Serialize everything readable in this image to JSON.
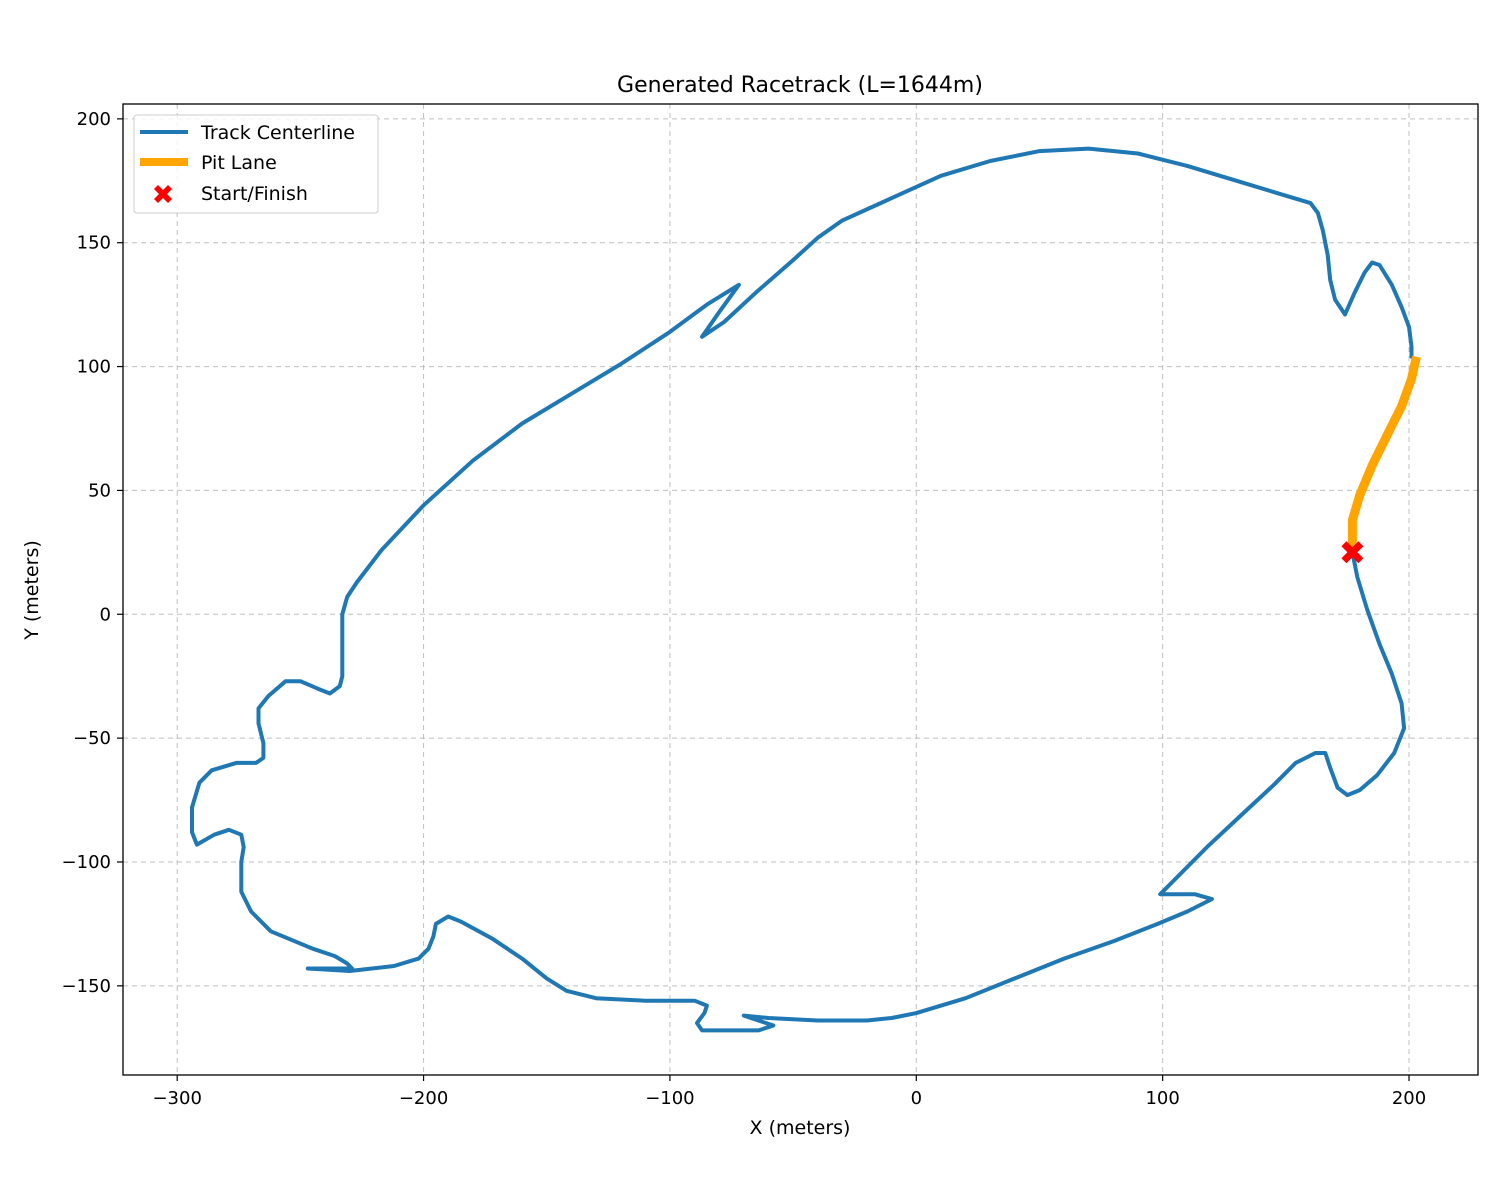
{
  "chart_data": {
    "type": "line",
    "title": "Generated Racetrack (L=1644m)",
    "xlabel": "X (meters)",
    "ylabel": "Y (meters)",
    "xlim": [
      -322,
      228
    ],
    "ylim": [
      -186,
      206
    ],
    "xticks": [
      -300,
      -200,
      -100,
      0,
      100,
      200
    ],
    "yticks": [
      -150,
      -100,
      -50,
      0,
      50,
      100,
      150,
      200
    ],
    "xtick_labels": [
      "−300",
      "−200",
      "−100",
      "0",
      "100",
      "200"
    ],
    "ytick_labels": [
      "−150",
      "−100",
      "−50",
      "0",
      "50",
      "100",
      "150",
      "200"
    ],
    "grid": true,
    "legend_position": "top-left",
    "colors": {
      "track": "#1f77b4",
      "pit": "#ffa500",
      "start": "#ff0000"
    },
    "series": [
      {
        "name": "Track Centerline",
        "style": "line",
        "points": [
          [
            177,
            25
          ],
          [
            179,
            15
          ],
          [
            183,
            2
          ],
          [
            188,
            -12
          ],
          [
            193,
            -24
          ],
          [
            197,
            -36
          ],
          [
            198,
            -46
          ],
          [
            194,
            -56
          ],
          [
            187,
            -65
          ],
          [
            180,
            -71
          ],
          [
            175,
            -73
          ],
          [
            171,
            -70
          ],
          [
            168,
            -62
          ],
          [
            166,
            -56
          ],
          [
            162,
            -56
          ],
          [
            154,
            -60
          ],
          [
            145,
            -69
          ],
          [
            132,
            -81
          ],
          [
            118,
            -94
          ],
          [
            108,
            -104
          ],
          [
            99,
            -113
          ],
          [
            105,
            -113
          ],
          [
            113,
            -113
          ],
          [
            120,
            -115
          ],
          [
            110,
            -120
          ],
          [
            98,
            -125
          ],
          [
            80,
            -132
          ],
          [
            60,
            -139
          ],
          [
            40,
            -147
          ],
          [
            20,
            -155
          ],
          [
            0,
            -161
          ],
          [
            -10,
            -163
          ],
          [
            -20,
            -164
          ],
          [
            -40,
            -164
          ],
          [
            -60,
            -163
          ],
          [
            -70,
            -162
          ],
          [
            -58,
            -166
          ],
          [
            -64,
            -168
          ],
          [
            -80,
            -168
          ],
          [
            -87,
            -168
          ],
          [
            -89,
            -165
          ],
          [
            -86,
            -161
          ],
          [
            -85,
            -158
          ],
          [
            -90,
            -156
          ],
          [
            -110,
            -156
          ],
          [
            -130,
            -155
          ],
          [
            -142,
            -152
          ],
          [
            -150,
            -147
          ],
          [
            -160,
            -139
          ],
          [
            -172,
            -131
          ],
          [
            -185,
            -124
          ],
          [
            -190,
            -122
          ],
          [
            -195,
            -125
          ],
          [
            -196,
            -130
          ],
          [
            -198,
            -135
          ],
          [
            -202,
            -139
          ],
          [
            -212,
            -142
          ],
          [
            -230,
            -144
          ],
          [
            -247,
            -143
          ],
          [
            -238,
            -143
          ],
          [
            -229,
            -143
          ],
          [
            -231,
            -141
          ],
          [
            -236,
            -138
          ],
          [
            -245,
            -135
          ],
          [
            -262,
            -128
          ],
          [
            -270,
            -120
          ],
          [
            -274,
            -112
          ],
          [
            -274,
            -100
          ],
          [
            -273,
            -94
          ],
          [
            -274,
            -89
          ],
          [
            -279,
            -87
          ],
          [
            -285,
            -89
          ],
          [
            -292,
            -93
          ],
          [
            -294,
            -88
          ],
          [
            -294,
            -78
          ],
          [
            -291,
            -68
          ],
          [
            -286,
            -63
          ],
          [
            -276,
            -60
          ],
          [
            -268,
            -60
          ],
          [
            -265,
            -58
          ],
          [
            -265,
            -52
          ],
          [
            -267,
            -44
          ],
          [
            -267,
            -38
          ],
          [
            -263,
            -33
          ],
          [
            -256,
            -27
          ],
          [
            -250,
            -27
          ],
          [
            -243,
            -30
          ],
          [
            -238,
            -32
          ],
          [
            -234,
            -29
          ],
          [
            -233,
            -25
          ],
          [
            -233,
            -15
          ],
          [
            -233,
            0
          ],
          [
            -231,
            7
          ],
          [
            -227,
            13
          ],
          [
            -217,
            26
          ],
          [
            -200,
            44
          ],
          [
            -180,
            62
          ],
          [
            -160,
            77
          ],
          [
            -140,
            89
          ],
          [
            -120,
            101
          ],
          [
            -100,
            114
          ],
          [
            -85,
            125
          ],
          [
            -72,
            133
          ],
          [
            -80,
            122
          ],
          [
            -87,
            112
          ],
          [
            -78,
            118
          ],
          [
            -65,
            130
          ],
          [
            -50,
            143
          ],
          [
            -40,
            152
          ],
          [
            -30,
            159
          ],
          [
            -10,
            168
          ],
          [
            10,
            177
          ],
          [
            30,
            183
          ],
          [
            50,
            187
          ],
          [
            70,
            188
          ],
          [
            90,
            186
          ],
          [
            110,
            181
          ],
          [
            130,
            175
          ],
          [
            150,
            169
          ],
          [
            160,
            166
          ],
          [
            163,
            162
          ],
          [
            165,
            155
          ],
          [
            167,
            145
          ],
          [
            168,
            135
          ],
          [
            170,
            127
          ],
          [
            174,
            121
          ],
          [
            178,
            130
          ],
          [
            182,
            138
          ],
          [
            185,
            142
          ],
          [
            188,
            141
          ],
          [
            193,
            133
          ],
          [
            197,
            124
          ],
          [
            200,
            116
          ],
          [
            201,
            108
          ],
          [
            201,
            104
          ]
        ]
      },
      {
        "name": "Pit Lane",
        "style": "line",
        "points": [
          [
            177,
            25
          ],
          [
            177,
            31
          ],
          [
            177,
            38
          ],
          [
            180,
            48
          ],
          [
            185,
            60
          ],
          [
            191,
            72
          ],
          [
            197,
            84
          ],
          [
            201,
            95
          ],
          [
            203,
            104
          ]
        ]
      },
      {
        "name": "Start/Finish",
        "style": "marker",
        "points": [
          [
            177,
            25
          ]
        ]
      }
    ]
  }
}
